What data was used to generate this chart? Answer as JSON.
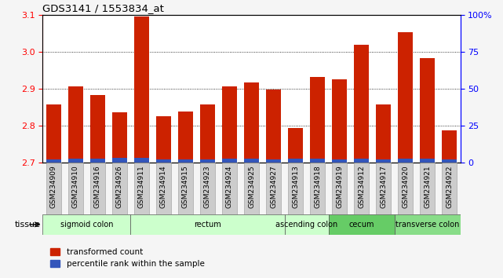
{
  "title": "GDS3141 / 1553834_at",
  "samples": [
    "GSM234909",
    "GSM234910",
    "GSM234916",
    "GSM234926",
    "GSM234911",
    "GSM234914",
    "GSM234915",
    "GSM234923",
    "GSM234924",
    "GSM234925",
    "GSM234927",
    "GSM234913",
    "GSM234918",
    "GSM234919",
    "GSM234912",
    "GSM234917",
    "GSM234920",
    "GSM234921",
    "GSM234922"
  ],
  "red_values": [
    2.857,
    2.907,
    2.883,
    2.837,
    3.097,
    2.825,
    2.838,
    2.858,
    2.907,
    2.918,
    2.899,
    2.793,
    2.932,
    2.927,
    3.02,
    2.858,
    3.055,
    2.984,
    2.788
  ],
  "blue_heights": [
    0.008,
    0.01,
    0.01,
    0.012,
    0.012,
    0.008,
    0.008,
    0.008,
    0.01,
    0.01,
    0.009,
    0.01,
    0.01,
    0.009,
    0.011,
    0.008,
    0.01,
    0.01,
    0.008
  ],
  "ylim_left": [
    2.7,
    3.1
  ],
  "ylim_right": [
    0,
    100
  ],
  "yticks_left": [
    2.7,
    2.8,
    2.9,
    3.0,
    3.1
  ],
  "yticks_right": [
    0,
    25,
    50,
    75,
    100
  ],
  "ytick_labels_right": [
    "0",
    "25",
    "50",
    "75",
    "100%"
  ],
  "bar_color_red": "#cc2200",
  "bar_color_blue": "#3355bb",
  "tissue_groups": [
    {
      "label": "sigmoid colon",
      "start": 0,
      "end": 4,
      "color": "#ccffcc"
    },
    {
      "label": "rectum",
      "start": 4,
      "end": 11,
      "color": "#ccffcc"
    },
    {
      "label": "ascending colon",
      "start": 11,
      "end": 13,
      "color": "#ccffcc"
    },
    {
      "label": "cecum",
      "start": 13,
      "end": 16,
      "color": "#66cc66"
    },
    {
      "label": "transverse colon",
      "start": 16,
      "end": 19,
      "color": "#88dd88"
    }
  ],
  "tissue_label": "tissue",
  "legend_red": "transformed count",
  "legend_blue": "percentile rank within the sample",
  "bar_width": 0.7,
  "base_value": 2.7,
  "grid_lines": [
    2.8,
    2.9,
    3.0
  ],
  "fig_bg": "#f5f5f5",
  "plot_bg": "#ffffff",
  "xtick_box_color": "#cccccc"
}
